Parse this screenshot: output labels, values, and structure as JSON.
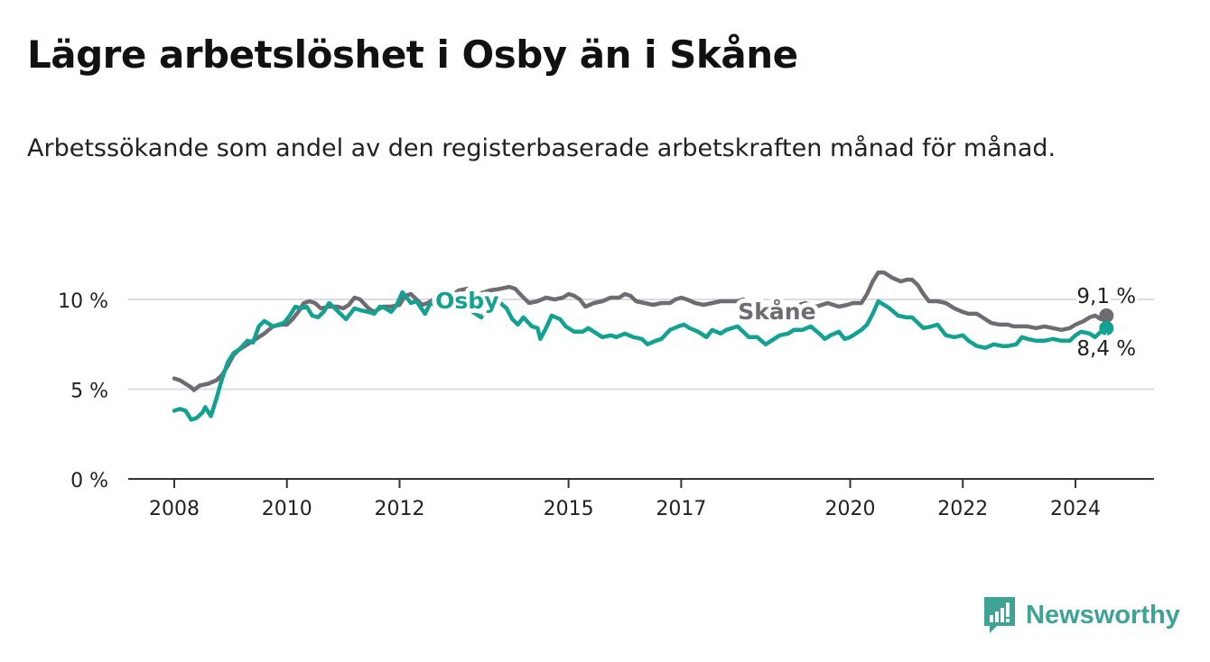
{
  "chart_data": {
    "type": "line",
    "title": "Lägre arbetslöshet i Osby än i Skåne",
    "subtitle": "Arbetssökande som andel av den registerbaserade arbetskraften månad för månad.",
    "xlabel": "",
    "ylabel": "",
    "xlim": [
      2008.0,
      2024.6
    ],
    "ylim": [
      0,
      10
    ],
    "y_ticks": [
      {
        "value": 0,
        "label": "0 %"
      },
      {
        "value": 5,
        "label": "5 %"
      },
      {
        "value": 10,
        "label": "10 %"
      }
    ],
    "x_ticks": [
      {
        "value": 2008,
        "label": "2008"
      },
      {
        "value": 2010,
        "label": "2010"
      },
      {
        "value": 2012,
        "label": "2012"
      },
      {
        "value": 2015,
        "label": "2015"
      },
      {
        "value": 2017,
        "label": "2017"
      },
      {
        "value": 2020,
        "label": "2020"
      },
      {
        "value": 2022,
        "label": "2022"
      },
      {
        "value": 2024,
        "label": "2024"
      }
    ],
    "grid": true,
    "series": [
      {
        "name": "Skåne",
        "color": "#6e6c72",
        "end_label": "9,1 %",
        "points": [
          [
            2008.0,
            5.6
          ],
          [
            2008.1,
            5.5
          ],
          [
            2008.2,
            5.3
          ],
          [
            2008.3,
            5.1
          ],
          [
            2008.35,
            4.95
          ],
          [
            2008.45,
            5.2
          ],
          [
            2008.6,
            5.3
          ],
          [
            2008.75,
            5.5
          ],
          [
            2008.85,
            5.8
          ],
          [
            2008.95,
            6.3
          ],
          [
            2009.05,
            6.9
          ],
          [
            2009.15,
            7.2
          ],
          [
            2009.3,
            7.5
          ],
          [
            2009.45,
            7.8
          ],
          [
            2009.6,
            8.1
          ],
          [
            2009.75,
            8.5
          ],
          [
            2009.9,
            8.6
          ],
          [
            2010.0,
            8.6
          ],
          [
            2010.1,
            8.9
          ],
          [
            2010.2,
            9.3
          ],
          [
            2010.3,
            9.8
          ],
          [
            2010.4,
            9.9
          ],
          [
            2010.5,
            9.8
          ],
          [
            2010.6,
            9.5
          ],
          [
            2010.75,
            9.6
          ],
          [
            2010.9,
            9.6
          ],
          [
            2011.0,
            9.5
          ],
          [
            2011.1,
            9.7
          ],
          [
            2011.2,
            10.1
          ],
          [
            2011.3,
            10.0
          ],
          [
            2011.45,
            9.5
          ],
          [
            2011.55,
            9.3
          ],
          [
            2011.7,
            9.6
          ],
          [
            2011.85,
            9.6
          ],
          [
            2012.0,
            9.7
          ],
          [
            2012.1,
            10.2
          ],
          [
            2012.2,
            10.3
          ],
          [
            2012.3,
            10.0
          ],
          [
            2012.4,
            9.7
          ],
          [
            2012.5,
            9.8
          ],
          [
            2012.6,
            10.0
          ],
          [
            2012.75,
            10.1
          ],
          [
            2012.9,
            10.2
          ],
          [
            2013.05,
            10.5
          ],
          [
            2013.2,
            10.6
          ],
          [
            2013.4,
            10.3
          ],
          [
            2013.6,
            10.5
          ],
          [
            2013.8,
            10.6
          ],
          [
            2013.95,
            10.7
          ],
          [
            2014.05,
            10.6
          ],
          [
            2014.2,
            10.1
          ],
          [
            2014.3,
            9.8
          ],
          [
            2014.45,
            9.9
          ],
          [
            2014.6,
            10.1
          ],
          [
            2014.75,
            10.0
          ],
          [
            2014.9,
            10.1
          ],
          [
            2015.0,
            10.3
          ],
          [
            2015.1,
            10.2
          ],
          [
            2015.2,
            10.0
          ],
          [
            2015.3,
            9.6
          ],
          [
            2015.45,
            9.8
          ],
          [
            2015.6,
            9.9
          ],
          [
            2015.75,
            10.1
          ],
          [
            2015.9,
            10.1
          ],
          [
            2016.0,
            10.3
          ],
          [
            2016.1,
            10.2
          ],
          [
            2016.2,
            9.9
          ],
          [
            2016.35,
            9.8
          ],
          [
            2016.5,
            9.7
          ],
          [
            2016.65,
            9.8
          ],
          [
            2016.8,
            9.8
          ],
          [
            2016.9,
            10.0
          ],
          [
            2017.0,
            10.1
          ],
          [
            2017.1,
            10.0
          ],
          [
            2017.25,
            9.8
          ],
          [
            2017.4,
            9.7
          ],
          [
            2017.55,
            9.8
          ],
          [
            2017.7,
            9.9
          ],
          [
            2017.85,
            9.9
          ],
          [
            2018.0,
            9.9
          ],
          [
            2018.1,
            10.0
          ],
          [
            2018.25,
            9.8
          ],
          [
            2018.4,
            9.5
          ],
          [
            2018.6,
            9.6
          ],
          [
            2018.8,
            9.5
          ],
          [
            2019.0,
            9.6
          ],
          [
            2019.2,
            9.8
          ],
          [
            2019.4,
            9.6
          ],
          [
            2019.6,
            9.8
          ],
          [
            2019.8,
            9.6
          ],
          [
            2019.95,
            9.7
          ],
          [
            2020.05,
            9.8
          ],
          [
            2020.2,
            9.8
          ],
          [
            2020.3,
            10.3
          ],
          [
            2020.4,
            11.0
          ],
          [
            2020.5,
            11.5
          ],
          [
            2020.6,
            11.5
          ],
          [
            2020.75,
            11.2
          ],
          [
            2020.9,
            11.0
          ],
          [
            2021.0,
            11.1
          ],
          [
            2021.1,
            11.1
          ],
          [
            2021.2,
            10.8
          ],
          [
            2021.3,
            10.3
          ],
          [
            2021.4,
            9.9
          ],
          [
            2021.55,
            9.9
          ],
          [
            2021.7,
            9.8
          ],
          [
            2021.85,
            9.5
          ],
          [
            2022.0,
            9.3
          ],
          [
            2022.1,
            9.2
          ],
          [
            2022.25,
            9.2
          ],
          [
            2022.35,
            9.0
          ],
          [
            2022.5,
            8.7
          ],
          [
            2022.65,
            8.6
          ],
          [
            2022.8,
            8.6
          ],
          [
            2022.9,
            8.5
          ],
          [
            2023.0,
            8.5
          ],
          [
            2023.15,
            8.5
          ],
          [
            2023.3,
            8.4
          ],
          [
            2023.45,
            8.5
          ],
          [
            2023.6,
            8.4
          ],
          [
            2023.75,
            8.3
          ],
          [
            2023.9,
            8.4
          ],
          [
            2024.0,
            8.6
          ],
          [
            2024.15,
            8.8
          ],
          [
            2024.25,
            9.0
          ],
          [
            2024.35,
            9.1
          ],
          [
            2024.45,
            8.9
          ],
          [
            2024.55,
            9.1
          ]
        ]
      },
      {
        "name": "Osby",
        "color": "#13a292",
        "end_label": "8,4 %",
        "points": [
          [
            2008.0,
            3.8
          ],
          [
            2008.1,
            3.9
          ],
          [
            2008.2,
            3.8
          ],
          [
            2008.3,
            3.3
          ],
          [
            2008.4,
            3.4
          ],
          [
            2008.5,
            3.7
          ],
          [
            2008.55,
            4.0
          ],
          [
            2008.65,
            3.5
          ],
          [
            2008.75,
            4.5
          ],
          [
            2008.85,
            5.6
          ],
          [
            2008.95,
            6.5
          ],
          [
            2009.05,
            7.0
          ],
          [
            2009.15,
            7.2
          ],
          [
            2009.3,
            7.7
          ],
          [
            2009.4,
            7.6
          ],
          [
            2009.5,
            8.5
          ],
          [
            2009.6,
            8.8
          ],
          [
            2009.75,
            8.5
          ],
          [
            2009.85,
            8.6
          ],
          [
            2009.95,
            8.7
          ],
          [
            2010.05,
            9.1
          ],
          [
            2010.15,
            9.6
          ],
          [
            2010.25,
            9.5
          ],
          [
            2010.35,
            9.6
          ],
          [
            2010.45,
            9.1
          ],
          [
            2010.55,
            9.0
          ],
          [
            2010.65,
            9.3
          ],
          [
            2010.75,
            9.8
          ],
          [
            2010.85,
            9.5
          ],
          [
            2010.95,
            9.2
          ],
          [
            2011.05,
            8.9
          ],
          [
            2011.2,
            9.5
          ],
          [
            2011.3,
            9.4
          ],
          [
            2011.45,
            9.3
          ],
          [
            2011.55,
            9.2
          ],
          [
            2011.65,
            9.6
          ],
          [
            2011.75,
            9.5
          ],
          [
            2011.85,
            9.3
          ],
          [
            2011.95,
            9.7
          ],
          [
            2012.05,
            10.4
          ],
          [
            2012.2,
            9.8
          ],
          [
            2012.3,
            9.9
          ],
          [
            2012.45,
            9.2
          ],
          [
            2012.55,
            9.8
          ],
          [
            2012.7,
            9.6
          ],
          [
            2012.8,
            9.4
          ],
          [
            2012.9,
            9.5
          ],
          [
            2013.0,
            9.6
          ],
          [
            2013.15,
            9.8
          ],
          [
            2013.3,
            9.3
          ],
          [
            2013.45,
            9.0
          ],
          [
            2013.6,
            9.6
          ],
          [
            2013.75,
            9.9
          ],
          [
            2013.9,
            9.5
          ],
          [
            2014.0,
            8.9
          ],
          [
            2014.1,
            8.6
          ],
          [
            2014.2,
            9.0
          ],
          [
            2014.35,
            8.5
          ],
          [
            2014.45,
            8.4
          ],
          [
            2014.5,
            7.8
          ],
          [
            2014.6,
            8.4
          ],
          [
            2014.7,
            9.1
          ],
          [
            2014.85,
            8.9
          ],
          [
            2014.95,
            8.5
          ],
          [
            2015.1,
            8.2
          ],
          [
            2015.25,
            8.2
          ],
          [
            2015.35,
            8.4
          ],
          [
            2015.5,
            8.1
          ],
          [
            2015.6,
            7.9
          ],
          [
            2015.75,
            8.0
          ],
          [
            2015.85,
            7.9
          ],
          [
            2016.0,
            8.1
          ],
          [
            2016.15,
            7.9
          ],
          [
            2016.3,
            7.8
          ],
          [
            2016.4,
            7.5
          ],
          [
            2016.55,
            7.7
          ],
          [
            2016.65,
            7.8
          ],
          [
            2016.8,
            8.3
          ],
          [
            2016.95,
            8.5
          ],
          [
            2017.05,
            8.6
          ],
          [
            2017.15,
            8.4
          ],
          [
            2017.3,
            8.2
          ],
          [
            2017.45,
            7.9
          ],
          [
            2017.55,
            8.3
          ],
          [
            2017.7,
            8.1
          ],
          [
            2017.8,
            8.3
          ],
          [
            2017.9,
            8.4
          ],
          [
            2018.0,
            8.5
          ],
          [
            2018.1,
            8.2
          ],
          [
            2018.2,
            7.9
          ],
          [
            2018.35,
            7.9
          ],
          [
            2018.5,
            7.5
          ],
          [
            2018.6,
            7.7
          ],
          [
            2018.75,
            8.0
          ],
          [
            2018.9,
            8.1
          ],
          [
            2019.0,
            8.3
          ],
          [
            2019.15,
            8.3
          ],
          [
            2019.3,
            8.5
          ],
          [
            2019.45,
            8.1
          ],
          [
            2019.55,
            7.8
          ],
          [
            2019.65,
            8.0
          ],
          [
            2019.8,
            8.2
          ],
          [
            2019.9,
            7.8
          ],
          [
            2020.0,
            7.9
          ],
          [
            2020.1,
            8.1
          ],
          [
            2020.2,
            8.3
          ],
          [
            2020.3,
            8.6
          ],
          [
            2020.4,
            9.2
          ],
          [
            2020.5,
            9.9
          ],
          [
            2020.55,
            9.8
          ],
          [
            2020.7,
            9.5
          ],
          [
            2020.85,
            9.1
          ],
          [
            2021.0,
            9.0
          ],
          [
            2021.1,
            9.0
          ],
          [
            2021.2,
            8.7
          ],
          [
            2021.3,
            8.4
          ],
          [
            2021.45,
            8.5
          ],
          [
            2021.55,
            8.6
          ],
          [
            2021.7,
            8.0
          ],
          [
            2021.85,
            7.9
          ],
          [
            2022.0,
            8.0
          ],
          [
            2022.1,
            7.7
          ],
          [
            2022.25,
            7.4
          ],
          [
            2022.4,
            7.3
          ],
          [
            2022.55,
            7.5
          ],
          [
            2022.7,
            7.4
          ],
          [
            2022.8,
            7.4
          ],
          [
            2022.95,
            7.5
          ],
          [
            2023.05,
            7.9
          ],
          [
            2023.15,
            7.8
          ],
          [
            2023.3,
            7.7
          ],
          [
            2023.45,
            7.7
          ],
          [
            2023.6,
            7.8
          ],
          [
            2023.75,
            7.7
          ],
          [
            2023.9,
            7.7
          ],
          [
            2024.0,
            8.0
          ],
          [
            2024.1,
            8.2
          ],
          [
            2024.25,
            8.1
          ],
          [
            2024.35,
            7.9
          ],
          [
            2024.45,
            8.2
          ],
          [
            2024.55,
            8.4
          ]
        ]
      }
    ],
    "annotations": [
      {
        "text": "Osby",
        "series": "Osby",
        "x": 2013.2,
        "y": 10.0
      },
      {
        "text": "Skåne",
        "series": "Skåne",
        "x": 2018.7,
        "y": 9.4
      }
    ]
  },
  "branding": {
    "name": "Newsworthy",
    "icon": "newsworthy-logo-icon",
    "color": "#3ea295"
  }
}
